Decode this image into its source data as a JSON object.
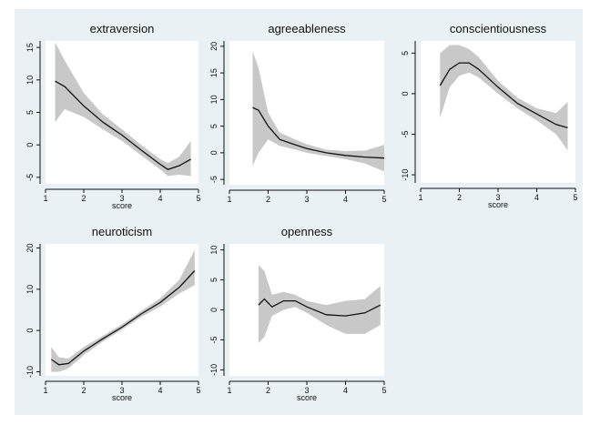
{
  "figure": {
    "background": "#eaf1f4",
    "band_color": "#c8c8c8",
    "line_color": "#111111"
  },
  "chart_data": [
    {
      "type": "line",
      "title": "extraversion",
      "xlabel": "score",
      "ylabel": "",
      "xlim": [
        1,
        5
      ],
      "ylim": [
        -6,
        16
      ],
      "xticks": [
        1,
        2,
        3,
        4,
        5
      ],
      "yticks": [
        -5,
        0,
        5,
        10,
        15
      ],
      "series": [
        {
          "x": [
            1.25,
            1.5,
            2.0,
            2.5,
            3.0,
            3.5,
            4.0,
            4.2,
            4.5,
            4.8
          ],
          "y": [
            9.8,
            9.0,
            6.0,
            3.5,
            1.5,
            -0.8,
            -3.0,
            -3.8,
            -3.2,
            -2.2
          ],
          "lower": [
            3.5,
            5.5,
            4.3,
            2.4,
            0.6,
            -1.6,
            -3.8,
            -4.8,
            -4.6,
            -4.8
          ],
          "upper": [
            15.8,
            13.0,
            8.0,
            4.7,
            2.4,
            0.0,
            -2.2,
            -2.8,
            -1.8,
            0.6
          ]
        }
      ]
    },
    {
      "type": "line",
      "title": "agreeableness",
      "xlabel": "",
      "ylabel": "",
      "xlim": [
        1,
        5
      ],
      "ylim": [
        -6,
        21
      ],
      "xticks": [
        1,
        2,
        3,
        4,
        5
      ],
      "yticks": [
        -5,
        0,
        5,
        10,
        15,
        20
      ],
      "series": [
        {
          "x": [
            1.6,
            1.75,
            2.0,
            2.3,
            2.7,
            3.0,
            3.5,
            4.0,
            4.5,
            5.0
          ],
          "y": [
            8.5,
            8.0,
            5.0,
            2.5,
            1.5,
            0.8,
            0.0,
            -0.5,
            -0.8,
            -1.0
          ],
          "lower": [
            -2.5,
            0.0,
            2.5,
            1.3,
            0.6,
            0.0,
            -0.6,
            -1.2,
            -2.0,
            -3.5
          ],
          "upper": [
            19.0,
            16.0,
            7.5,
            3.8,
            2.5,
            1.6,
            0.6,
            0.3,
            0.4,
            1.5
          ]
        }
      ]
    },
    {
      "type": "line",
      "title": "conscientiousness",
      "xlabel": "score",
      "ylabel": "",
      "xlim": [
        1,
        5
      ],
      "ylim": [
        -11,
        6.5
      ],
      "xticks": [
        1,
        2,
        3,
        4,
        5
      ],
      "yticks": [
        -10,
        -5,
        0,
        5
      ],
      "series": [
        {
          "x": [
            1.5,
            1.75,
            2.0,
            2.25,
            2.5,
            3.0,
            3.5,
            4.0,
            4.5,
            4.8
          ],
          "y": [
            1.0,
            3.0,
            3.8,
            3.8,
            3.0,
            0.8,
            -1.2,
            -2.5,
            -3.8,
            -4.2
          ],
          "lower": [
            -3.0,
            0.8,
            2.2,
            2.6,
            2.0,
            0.0,
            -1.8,
            -3.3,
            -5.0,
            -7.0
          ],
          "upper": [
            5.0,
            6.0,
            6.0,
            5.5,
            4.5,
            1.6,
            -0.5,
            -1.8,
            -2.4,
            -1.0
          ]
        }
      ]
    },
    {
      "type": "line",
      "title": "neuroticism",
      "xlabel": "score",
      "ylabel": "",
      "xlim": [
        1,
        5
      ],
      "ylim": [
        -11,
        21
      ],
      "xticks": [
        1,
        2,
        3,
        4,
        5
      ],
      "yticks": [
        -10,
        0,
        10,
        20
      ],
      "series": [
        {
          "x": [
            1.15,
            1.35,
            1.6,
            2.0,
            2.5,
            3.0,
            3.5,
            4.0,
            4.5,
            4.9
          ],
          "y": [
            -7.0,
            -8.3,
            -8.0,
            -5.0,
            -2.0,
            0.8,
            4.0,
            6.8,
            10.5,
            14.5
          ],
          "lower": [
            -10.0,
            -10.0,
            -9.2,
            -6.0,
            -2.7,
            0.2,
            3.3,
            5.8,
            9.0,
            11.0
          ],
          "upper": [
            -4.0,
            -6.5,
            -6.8,
            -4.0,
            -1.3,
            1.5,
            4.7,
            7.8,
            12.3,
            19.5
          ]
        }
      ]
    },
    {
      "type": "line",
      "title": "openness",
      "xlabel": "score",
      "ylabel": "",
      "xlim": [
        1,
        5
      ],
      "ylim": [
        -11,
        11
      ],
      "xticks": [
        1,
        2,
        3,
        4,
        5
      ],
      "yticks": [
        -10,
        -5,
        0,
        5,
        10
      ],
      "series": [
        {
          "x": [
            1.75,
            1.9,
            2.1,
            2.4,
            2.7,
            3.0,
            3.5,
            4.0,
            4.5,
            4.9
          ],
          "y": [
            0.8,
            1.8,
            0.5,
            1.5,
            1.5,
            0.5,
            -0.8,
            -1.0,
            -0.5,
            0.8
          ],
          "lower": [
            -5.5,
            -4.5,
            -1.0,
            0.0,
            0.5,
            -0.5,
            -2.5,
            -4.0,
            -4.0,
            -2.5
          ],
          "upper": [
            7.5,
            6.5,
            2.5,
            3.0,
            2.5,
            1.5,
            0.8,
            1.5,
            1.8,
            4.0
          ]
        }
      ]
    }
  ]
}
